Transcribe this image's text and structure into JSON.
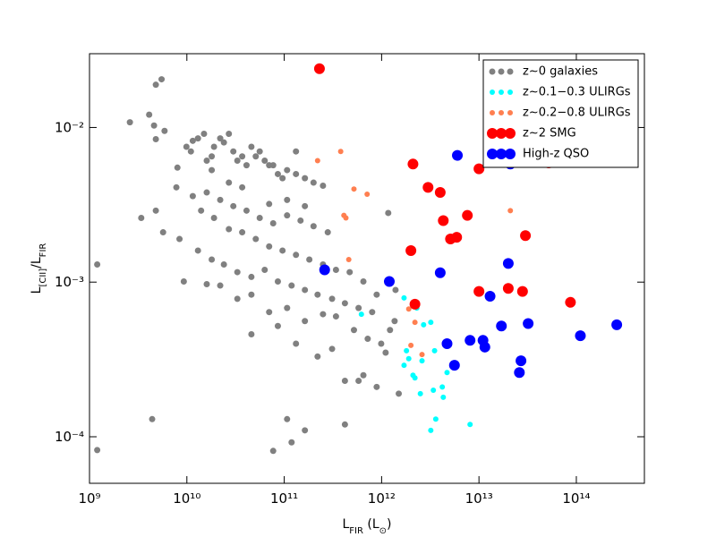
{
  "chart_data": {
    "type": "scatter",
    "xlabel": [
      "L",
      "FIR",
      " (L",
      "⊙",
      ")"
    ],
    "ylabel": [
      "L",
      "[CII]",
      "/L",
      "FIR"
    ],
    "xscale": "log",
    "yscale": "log",
    "xlim": [
      1000000000.0,
      500000000000000.0
    ],
    "ylim": [
      5e-05,
      0.03
    ],
    "xticks": [
      {
        "value": 1000000000.0,
        "label": "10⁹"
      },
      {
        "value": 10000000000.0,
        "label": "10¹⁰"
      },
      {
        "value": 100000000000.0,
        "label": "10¹¹"
      },
      {
        "value": 1000000000000.0,
        "label": "10¹²"
      },
      {
        "value": 10000000000000.0,
        "label": "10¹³"
      },
      {
        "value": 100000000000000.0,
        "label": "10¹⁴"
      }
    ],
    "yticks": [
      {
        "value": 0.0001,
        "label": "10⁻⁴"
      },
      {
        "value": 0.001,
        "label": "10⁻³"
      },
      {
        "value": 0.01,
        "label": "10⁻²"
      }
    ],
    "grid": false,
    "legend": "upper right",
    "series": [
      {
        "name": "z∼0 galaxies",
        "color": "#808080",
        "x": [
          1200000000.0,
          1200000000.0,
          2600000000.0,
          4100000000.0,
          4800000000.0,
          5500000000.0,
          4600000000.0,
          3400000000.0,
          4800000000.0,
          5900000000.0,
          4800000000.0,
          5700000000.0,
          4400000000.0,
          7800000000.0,
          8400000000.0,
          9300000000.0,
          8000000000.0,
          9900000000.0,
          11000000000.0,
          11500000000.0,
          13000000000.0,
          15000000000.0,
          16000000000.0,
          18000000000.0,
          19000000000.0,
          22000000000.0,
          24000000000.0,
          27000000000.0,
          30000000000.0,
          33000000000.0,
          37000000000.0,
          41000000000.0,
          46000000000.0,
          51000000000.0,
          56000000000.0,
          63000000000.0,
          70000000000.0,
          77000000000.0,
          86000000000.0,
          96000000000.0,
          107000000000.0,
          132000000000.0,
          163000000000.0,
          200000000000.0,
          250000000000.0,
          16000000000.0,
          22000000000.0,
          30000000000.0,
          41000000000.0,
          56000000000.0,
          77000000000.0,
          107000000000.0,
          147000000000.0,
          200000000000.0,
          280000000000.0,
          14000000000.0,
          19000000000.0,
          27000000000.0,
          37000000000.0,
          51000000000.0,
          70000000000.0,
          96000000000.0,
          132000000000.0,
          181000000000.0,
          250000000000.0,
          340000000000.0,
          470000000000.0,
          650000000000.0,
          13000000000.0,
          18000000000.0,
          24000000000.0,
          33000000000.0,
          46000000000.0,
          63000000000.0,
          86000000000.0,
          119000000000.0,
          163000000000.0,
          220000000000.0,
          310000000000.0,
          420000000000.0,
          580000000000.0,
          800000000000.0,
          16000000000.0,
          22000000000.0,
          33000000000.0,
          46000000000.0,
          70000000000.0,
          107000000000.0,
          163000000000.0,
          250000000000.0,
          340000000000.0,
          520000000000.0,
          720000000000.0,
          990000000000.0,
          1360000000000.0,
          1100000000000.0,
          650000000000.0,
          580000000000.0,
          890000000000.0,
          420000000000.0,
          310000000000.0,
          220000000000.0,
          132000000000.0,
          86000000000.0,
          46000000000.0,
          107000000000.0,
          119000000000.0,
          77000000000.0,
          163000000000.0,
          420000000000.0,
          1220000000000.0,
          1390000000000.0,
          1170000000000.0,
          1500000000000.0,
          890000000000.0,
          70000000000.0,
          107000000000.0,
          163000000000.0,
          27000000000.0,
          11500000000.0,
          18000000000.0,
          132000000000.0,
          37000000000.0
        ],
        "values": [
          0.0013,
          8.2e-05,
          0.0108,
          0.0121,
          0.0189,
          0.0205,
          0.0103,
          0.0026,
          0.0084,
          0.0095,
          0.0029,
          0.0021,
          0.00013,
          0.0041,
          0.0019,
          0.00101,
          0.0055,
          0.0075,
          0.007,
          0.0082,
          0.0085,
          0.0091,
          0.0061,
          0.0065,
          0.0075,
          0.0085,
          0.008,
          0.0091,
          0.007,
          0.0061,
          0.0065,
          0.0057,
          0.0075,
          0.0065,
          0.007,
          0.0061,
          0.0057,
          0.0057,
          0.005,
          0.0047,
          0.0053,
          0.005,
          0.0047,
          0.0044,
          0.0042,
          0.0038,
          0.0034,
          0.0031,
          0.0029,
          0.0026,
          0.0024,
          0.0027,
          0.0025,
          0.0023,
          0.0021,
          0.0029,
          0.0026,
          0.0022,
          0.0021,
          0.0019,
          0.0017,
          0.0016,
          0.0015,
          0.0014,
          0.0013,
          0.0012,
          0.00116,
          0.00101,
          0.0016,
          0.0014,
          0.0013,
          0.00116,
          0.00108,
          0.0012,
          0.00101,
          0.00095,
          0.00089,
          0.00083,
          0.00078,
          0.00073,
          0.00068,
          0.00064,
          0.00097,
          0.00095,
          0.00078,
          0.00083,
          0.00064,
          0.00068,
          0.00056,
          0.00062,
          0.0006,
          0.00049,
          0.00043,
          0.0004,
          0.00056,
          0.00035,
          0.00025,
          0.00023,
          0.00021,
          0.00023,
          0.00037,
          0.00033,
          0.0004,
          0.00052,
          0.00046,
          0.00013,
          9.2e-05,
          8.1e-05,
          0.00011,
          0.00012,
          0.00049,
          0.00089,
          0.0028,
          0.00019,
          0.00083,
          0.0032,
          0.0034,
          0.0031,
          0.0044,
          0.0036,
          0.0053,
          0.007,
          0.0041
        ]
      },
      {
        "name": "z∼0.1−0.3 ULIRGs",
        "color": "#00ffff",
        "x": [
          620000000000.0,
          1700000000000.0,
          2300000000000.0,
          2700000000000.0,
          3200000000000.0,
          1800000000000.0,
          1900000000000.0,
          1700000000000.0,
          2100000000000.0,
          2600000000000.0,
          2500000000000.0,
          3500000000000.0,
          3400000000000.0,
          4200000000000.0,
          4300000000000.0,
          4700000000000.0,
          3600000000000.0,
          3200000000000.0,
          8100000000000.0,
          2200000000000.0
        ],
        "values": [
          0.00062,
          0.00079,
          0.00068,
          0.00053,
          0.00055,
          0.00036,
          0.00032,
          0.00029,
          0.00025,
          0.00031,
          0.00019,
          0.00036,
          0.0002,
          0.00021,
          0.00018,
          0.00026,
          0.00013,
          0.00011,
          0.00012,
          0.00024
        ]
      },
      {
        "name": "z∼0.2−0.8 ULIRGs",
        "color": "#ff7f50",
        "x": [
          220000000000.0,
          380000000000.0,
          520000000000.0,
          710000000000.0,
          410000000000.0,
          430000000000.0,
          460000000000.0,
          21000000000000.0,
          2000000000000.0,
          2600000000000.0,
          2200000000000.0,
          1900000000000.0
        ],
        "values": [
          0.0061,
          0.007,
          0.004,
          0.0037,
          0.0027,
          0.0026,
          0.0014,
          0.0029,
          0.00039,
          0.00034,
          0.00055,
          0.00067
        ]
      },
      {
        "name": "z∼2 SMG",
        "color": "#ff0000",
        "x": [
          230000000000.0,
          2100000000000.0,
          3000000000000.0,
          4000000000000.0,
          4300000000000.0,
          7600000000000.0,
          5100000000000.0,
          5900000000000.0,
          2000000000000.0,
          10000000000000.0,
          52000000000000.0,
          30000000000000.0,
          10000000000000.0,
          20000000000000.0,
          28000000000000.0,
          87000000000000.0,
          2200000000000.0
        ],
        "values": [
          0.024,
          0.0058,
          0.0041,
          0.0038,
          0.0025,
          0.0027,
          0.0019,
          0.00195,
          0.0016,
          0.0054,
          0.0059,
          0.002,
          0.00087,
          0.00091,
          0.00087,
          0.00074,
          0.00072
        ]
      },
      {
        "name": "High-z QSO",
        "color": "#0000ff",
        "x": [
          6000000000000.0,
          21000000000000.0,
          260000000000.0,
          1200000000000.0,
          4000000000000.0,
          20000000000000.0,
          13000000000000.0,
          17000000000000.0,
          32000000000000.0,
          260000000000000.0,
          110000000000000.0,
          8100000000000.0,
          11000000000000.0,
          11500000000000.0,
          4700000000000.0,
          27000000000000.0,
          26000000000000.0,
          5600000000000.0
        ],
        "values": [
          0.0066,
          0.0058,
          0.0012,
          0.00101,
          0.00115,
          0.00132,
          0.00081,
          0.00052,
          0.00054,
          0.00053,
          0.00045,
          0.00042,
          0.00042,
          0.00038,
          0.0004,
          0.00031,
          0.00026,
          0.00029
        ]
      }
    ]
  }
}
